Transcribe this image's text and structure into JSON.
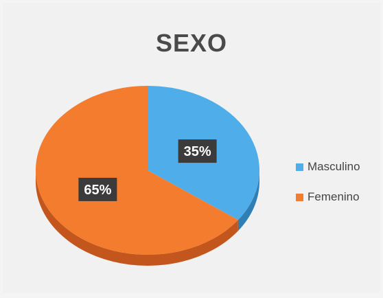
{
  "chart_data": {
    "type": "pie",
    "title": "SEXO",
    "slices": [
      {
        "name": "Masculino",
        "value": 35,
        "label": "35%",
        "color": "#4faeea",
        "side_color": "#2f7fb5"
      },
      {
        "name": "Femenino",
        "value": 65,
        "label": "65%",
        "color": "#f47c2e",
        "side_color": "#c2561c"
      }
    ],
    "legend_position": "right"
  }
}
